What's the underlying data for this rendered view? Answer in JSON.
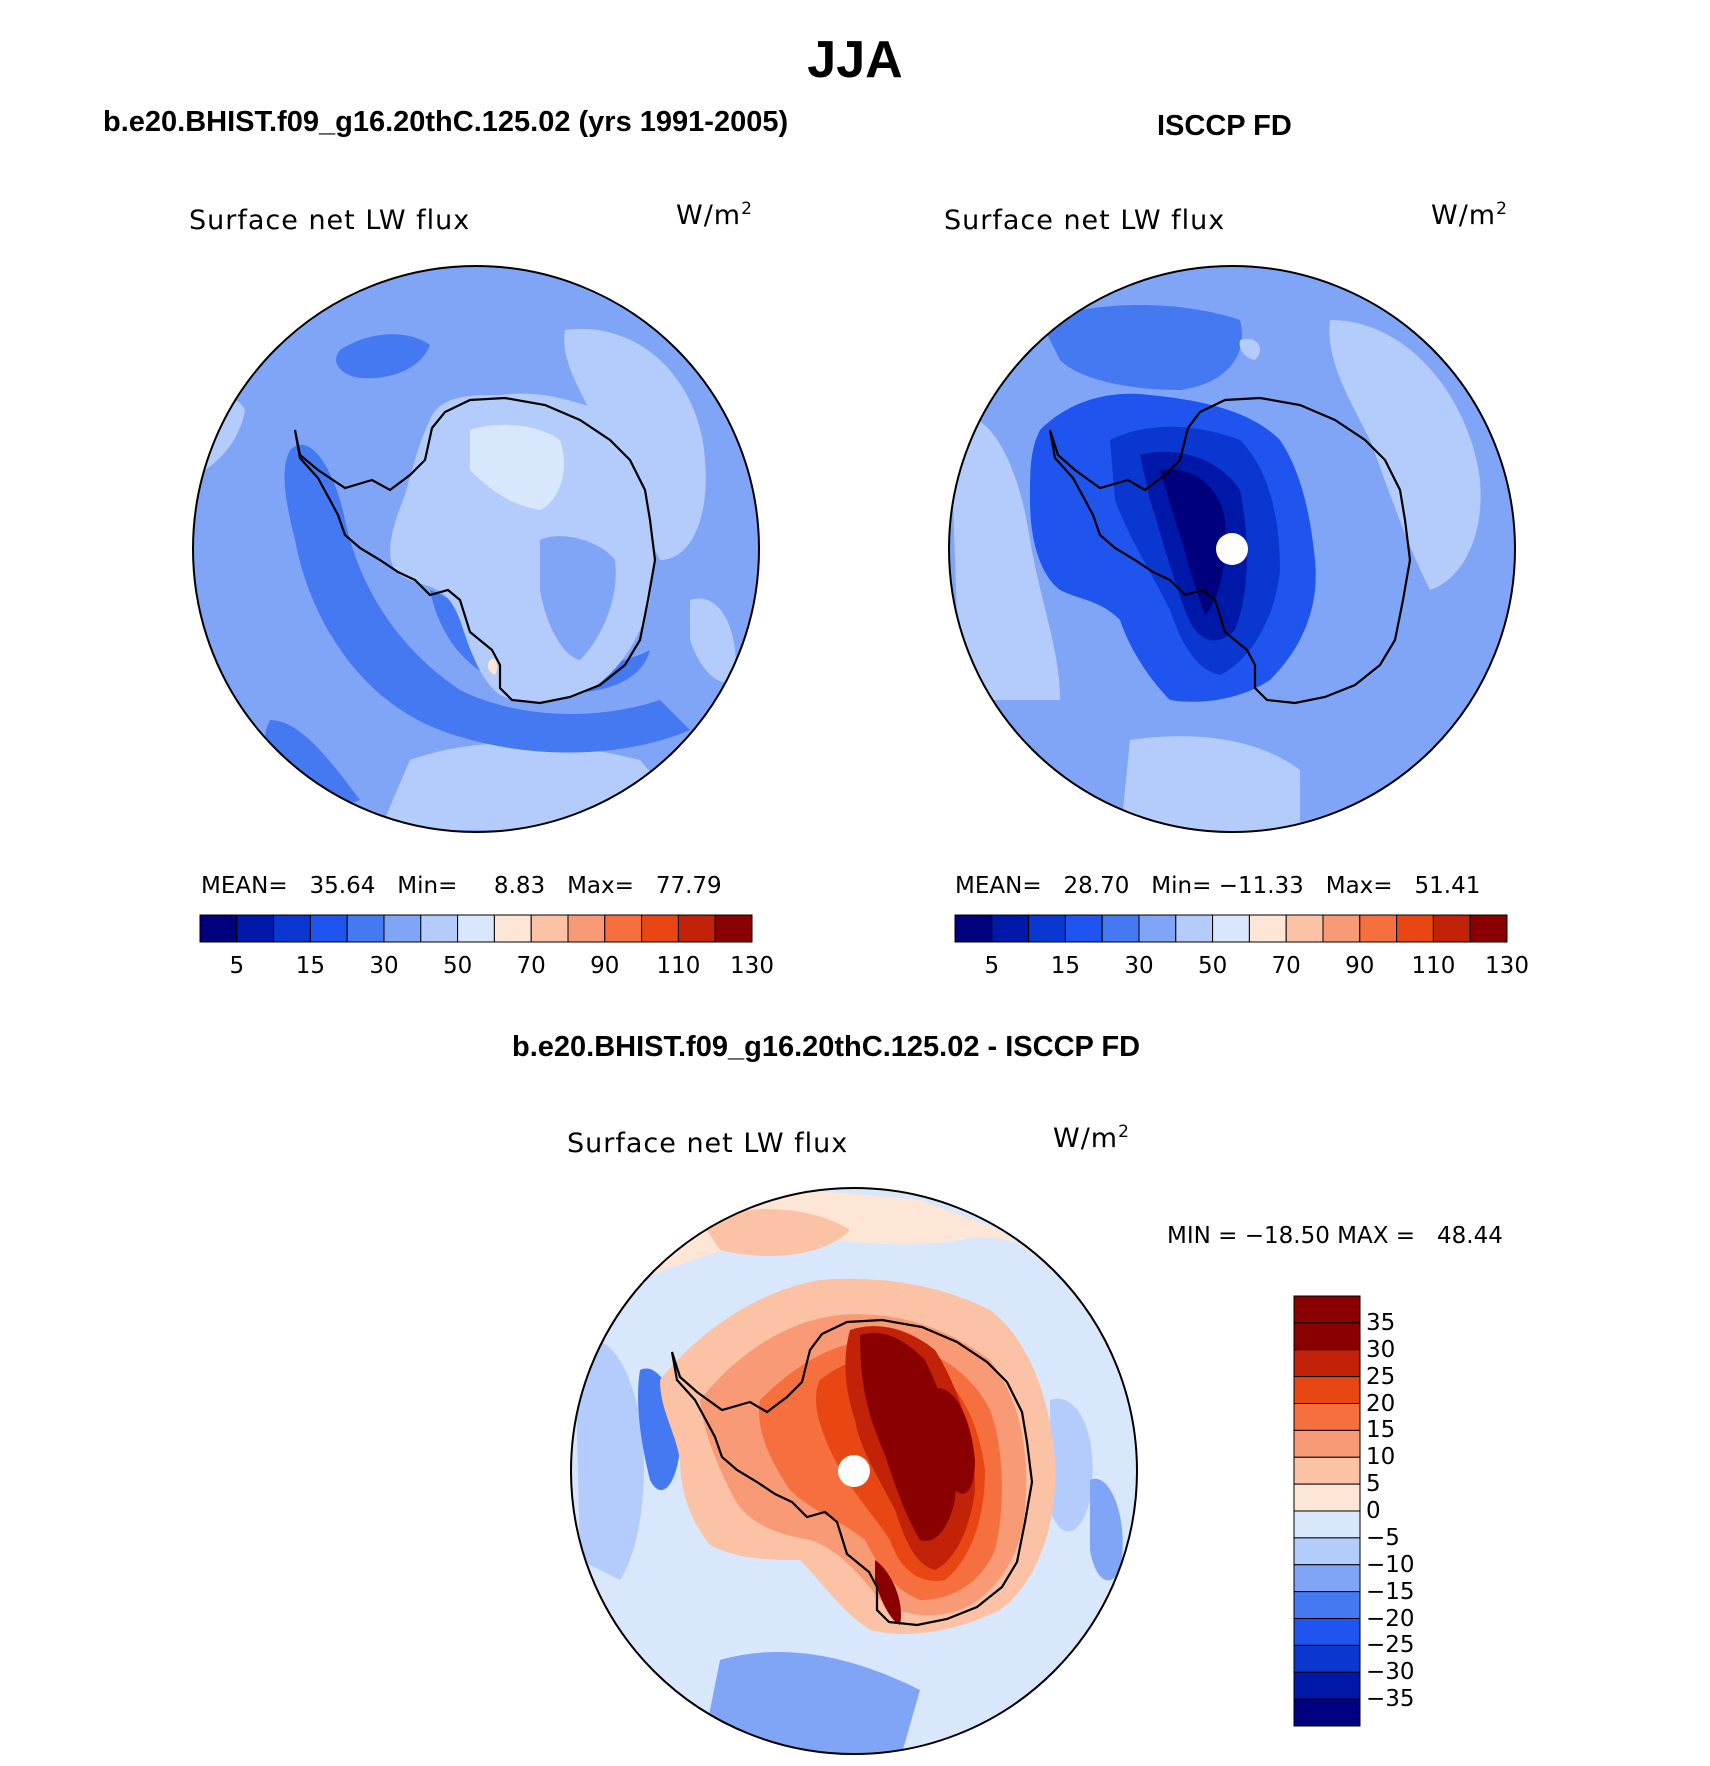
{
  "figure": {
    "title": "JJA"
  },
  "panels": [
    {
      "header": "b.e20.BHIST.f09_g16.20thC.125.02 (yrs 1991-2005)",
      "plot_title": "Surface net LW flux",
      "units": "W/m",
      "units_sup": "2",
      "stats": "MEAN=   35.64   Min=     8.83   Max=   77.79",
      "colorbar_labels": [
        "5",
        "15",
        "30",
        "50",
        "70",
        "90",
        "110",
        "130"
      ]
    },
    {
      "header": "ISCCP FD",
      "plot_title": "Surface net LW flux",
      "units": "W/m",
      "units_sup": "2",
      "stats": "MEAN=   28.70   Min= −11.33   Max=   51.41",
      "colorbar_labels": [
        "5",
        "15",
        "30",
        "50",
        "70",
        "90",
        "110",
        "130"
      ]
    },
    {
      "header": "b.e20.BHIST.f09_g16.20thC.125.02 - ISCCP FD",
      "plot_title": "Surface net LW flux",
      "units": "W/m",
      "units_sup": "2",
      "stats": "MIN = −18.50 MAX =   48.44",
      "colorbar_labels": [
        "35",
        "30",
        "25",
        "20",
        "15",
        "10",
        "5",
        "0",
        "−5",
        "−10",
        "−15",
        "−20",
        "−25",
        "−30",
        "−35"
      ]
    }
  ],
  "colors": {
    "abs_scale": [
      "#00007f",
      "#0018a8",
      "#0a37d0",
      "#1f55ee",
      "#4479f2",
      "#80a5f7",
      "#b3ccfb",
      "#d8e7fc",
      "#fde6d6",
      "#fbc2a6",
      "#f89a75",
      "#f6703f",
      "#e84713",
      "#c22207",
      "#8a0000"
    ],
    "diff_scale": [
      "#8a0000",
      "#c22207",
      "#e84713",
      "#f6703f",
      "#f89a75",
      "#fbc2a6",
      "#fde6d6",
      "#d8e7fc",
      "#b3ccfb",
      "#80a5f7",
      "#4479f2",
      "#1f55ee",
      "#0a37d0",
      "#0018a8",
      "#00007f"
    ]
  }
}
